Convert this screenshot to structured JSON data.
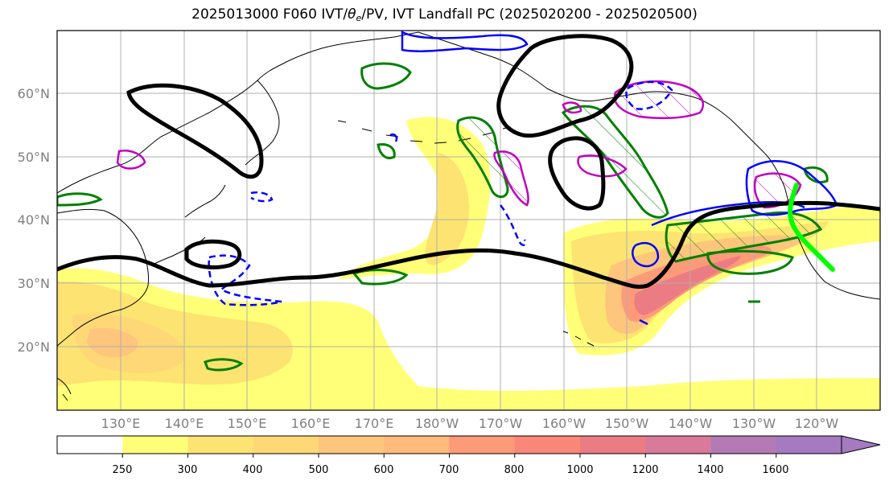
{
  "title": {
    "prefix": "2025013000 F060 IVT/",
    "theta_symbol": "θ",
    "theta_sub": "e",
    "suffix": "/PV, IVT Landfall PC (2025020200 - 2025020500)"
  },
  "map": {
    "lat_labels": [
      "60°N",
      "50°N",
      "40°N",
      "30°N",
      "20°N"
    ],
    "lon_labels": [
      "130°E",
      "140°E",
      "150°E",
      "160°E",
      "170°E",
      "180°W",
      "170°W",
      "160°W",
      "150°W",
      "140°W",
      "130°W",
      "120°W"
    ],
    "land_outline_color": "#000000",
    "grid_color": "#b0b0b0"
  },
  "colorbar": {
    "levels": [
      "250",
      "300",
      "400",
      "500",
      "600",
      "700",
      "800",
      "1000",
      "1200",
      "1400",
      "1600"
    ],
    "colors": [
      "#ffffff",
      "#ffff78",
      "#fde371",
      "#fed877",
      "#fec57c",
      "#febb7b",
      "#fd9a78",
      "#fa8778",
      "#ec7c83",
      "#d97a9a",
      "#b47ab5",
      "#a57ac1"
    ]
  },
  "overlays": {
    "pv_contour_color": "#000000",
    "theta_e_warm_color": "#008000",
    "theta_e_magenta_color": "#c000c0",
    "blue_contour_color": "#0000ff",
    "landfall_color": "#00ff00"
  }
}
